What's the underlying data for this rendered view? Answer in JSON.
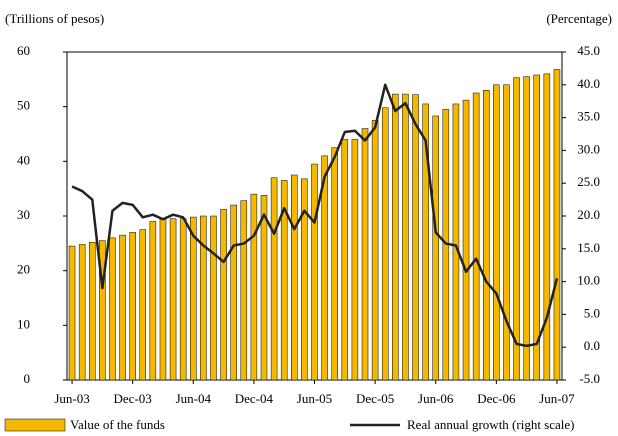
{
  "chart_data": {
    "type": "bar_line",
    "y_label": "(Trillions of pesos)",
    "y2_label": "(Percentage)",
    "categories": [
      "Jun-03",
      null,
      null,
      null,
      null,
      null,
      "Dec-03",
      null,
      null,
      null,
      null,
      null,
      "Jun-04",
      null,
      null,
      null,
      null,
      null,
      "Dec-04",
      null,
      null,
      null,
      null,
      null,
      "Jun-05",
      null,
      null,
      null,
      null,
      null,
      "Dec-05",
      null,
      null,
      null,
      null,
      null,
      "Jun-06",
      null,
      null,
      null,
      null,
      null,
      "Dec-06",
      null,
      null,
      null,
      null,
      null,
      "Jun-07"
    ],
    "series": [
      {
        "name": "Value of the funds",
        "color": "#f5b800",
        "kind": "bar",
        "values": [
          24.5,
          24.8,
          25.2,
          25.5,
          26,
          26.5,
          27,
          27.5,
          29,
          29.5,
          29.5,
          29.5,
          29.8,
          30,
          30,
          31.2,
          32,
          32.8,
          34,
          33.8,
          37,
          36.5,
          37.5,
          36.8,
          39.5,
          41,
          42.5,
          44,
          44,
          46,
          47.5,
          49.8,
          52.3,
          52.3,
          52.2,
          50.5,
          48.3,
          49.5,
          50.5,
          51.2,
          52.5,
          53,
          54,
          54,
          55.3,
          55.5,
          55.8,
          56,
          56.8
        ]
      },
      {
        "name": "Real annual growth (right scale)",
        "color": "#222222",
        "kind": "line",
        "axis": "y2",
        "values": [
          24.5,
          23.8,
          22.5,
          9,
          20.8,
          22,
          21.7,
          19.8,
          20.2,
          19.5,
          20.2,
          19.8,
          17,
          15.5,
          14.3,
          13,
          15.5,
          15.8,
          17,
          20.2,
          17.3,
          21.2,
          18,
          20.8,
          19,
          26,
          29,
          32.8,
          33,
          31.5,
          33.5,
          40,
          36,
          37.2,
          34,
          31.5,
          17.5,
          15.8,
          15.5,
          11.5,
          13.5,
          10,
          8.2,
          4,
          0.5,
          0.2,
          0.5,
          4.5,
          10.5
        ]
      }
    ],
    "ylim": [
      0,
      60
    ],
    "yticks": [
      0,
      10,
      20,
      30,
      40,
      50,
      60
    ],
    "y2lim": [
      -5,
      45
    ],
    "y2ticks": [
      {
        "value": -5,
        "label": "-5.0"
      },
      {
        "value": 0,
        "label": "0.0"
      },
      {
        "value": 5,
        "label": "5.0"
      },
      {
        "value": 10,
        "label": "10.0"
      },
      {
        "value": 15,
        "label": "15.0"
      },
      {
        "value": 20,
        "label": "20.0"
      },
      {
        "value": 25,
        "label": "25.0"
      },
      {
        "value": 30,
        "label": "30.0"
      },
      {
        "value": 35,
        "label": "35.0"
      },
      {
        "value": 40,
        "label": "40.0"
      },
      {
        "value": 45,
        "label": "45.0"
      }
    ]
  }
}
